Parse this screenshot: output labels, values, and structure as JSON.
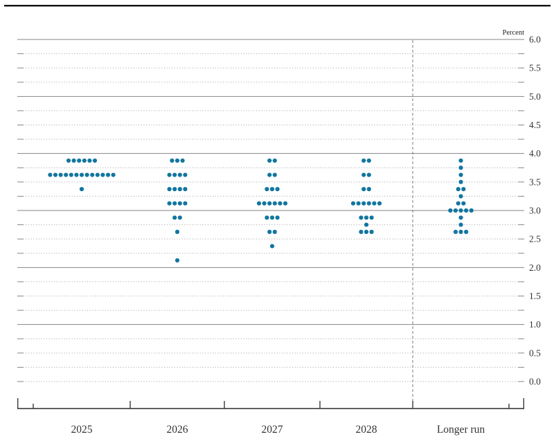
{
  "chart_data": {
    "type": "scatter",
    "variant": "fomc-dot-plot",
    "unit_label": "Percent",
    "legend": "none",
    "grid": "on",
    "categories": [
      "2025",
      "2026",
      "2027",
      "2028",
      "Longer run"
    ],
    "y_axis": {
      "min": 0.0,
      "max": 6.0,
      "grid_step": 0.25,
      "label_step": 0.5,
      "labels_side": "right",
      "labels": [
        "6.0",
        "5.5",
        "5.0",
        "4.5",
        "4.0",
        "3.5",
        "3.0",
        "2.5",
        "2.0",
        "1.5",
        "1.0",
        "0.5",
        "0.0"
      ]
    },
    "series": [
      {
        "category": "2025",
        "dots": [
          {
            "rate": 3.875,
            "count": 6
          },
          {
            "rate": 3.625,
            "count": 13
          },
          {
            "rate": 3.375,
            "count": 1
          }
        ]
      },
      {
        "category": "2026",
        "dots": [
          {
            "rate": 3.875,
            "count": 3
          },
          {
            "rate": 3.625,
            "count": 4
          },
          {
            "rate": 3.375,
            "count": 4
          },
          {
            "rate": 3.125,
            "count": 4
          },
          {
            "rate": 2.875,
            "count": 2
          },
          {
            "rate": 2.625,
            "count": 1
          },
          {
            "rate": 2.125,
            "count": 1
          }
        ]
      },
      {
        "category": "2027",
        "dots": [
          {
            "rate": 3.875,
            "count": 2
          },
          {
            "rate": 3.625,
            "count": 2
          },
          {
            "rate": 3.375,
            "count": 3
          },
          {
            "rate": 3.125,
            "count": 6
          },
          {
            "rate": 2.875,
            "count": 3
          },
          {
            "rate": 2.625,
            "count": 2
          },
          {
            "rate": 2.375,
            "count": 1
          }
        ]
      },
      {
        "category": "2028",
        "dots": [
          {
            "rate": 3.875,
            "count": 2
          },
          {
            "rate": 3.625,
            "count": 2
          },
          {
            "rate": 3.375,
            "count": 2
          },
          {
            "rate": 3.125,
            "count": 6
          },
          {
            "rate": 2.875,
            "count": 3
          },
          {
            "rate": 2.75,
            "count": 1
          },
          {
            "rate": 2.625,
            "count": 3
          }
        ]
      },
      {
        "category": "Longer run",
        "dots": [
          {
            "rate": 3.875,
            "count": 1
          },
          {
            "rate": 3.75,
            "count": 1
          },
          {
            "rate": 3.625,
            "count": 1
          },
          {
            "rate": 3.5,
            "count": 1
          },
          {
            "rate": 3.375,
            "count": 2
          },
          {
            "rate": 3.25,
            "count": 1
          },
          {
            "rate": 3.125,
            "count": 2
          },
          {
            "rate": 3.0,
            "count": 5
          },
          {
            "rate": 2.875,
            "count": 1
          },
          {
            "rate": 2.75,
            "count": 1
          },
          {
            "rate": 2.625,
            "count": 3
          }
        ]
      }
    ],
    "colors": {
      "dot": "#12769f",
      "grid_solid": "#848484",
      "grid_dotted": "#9e9e9e",
      "axis": "#2b2b2b",
      "separator": "#7a7a7a",
      "text": "#333333",
      "top_rule": "#111111"
    }
  }
}
